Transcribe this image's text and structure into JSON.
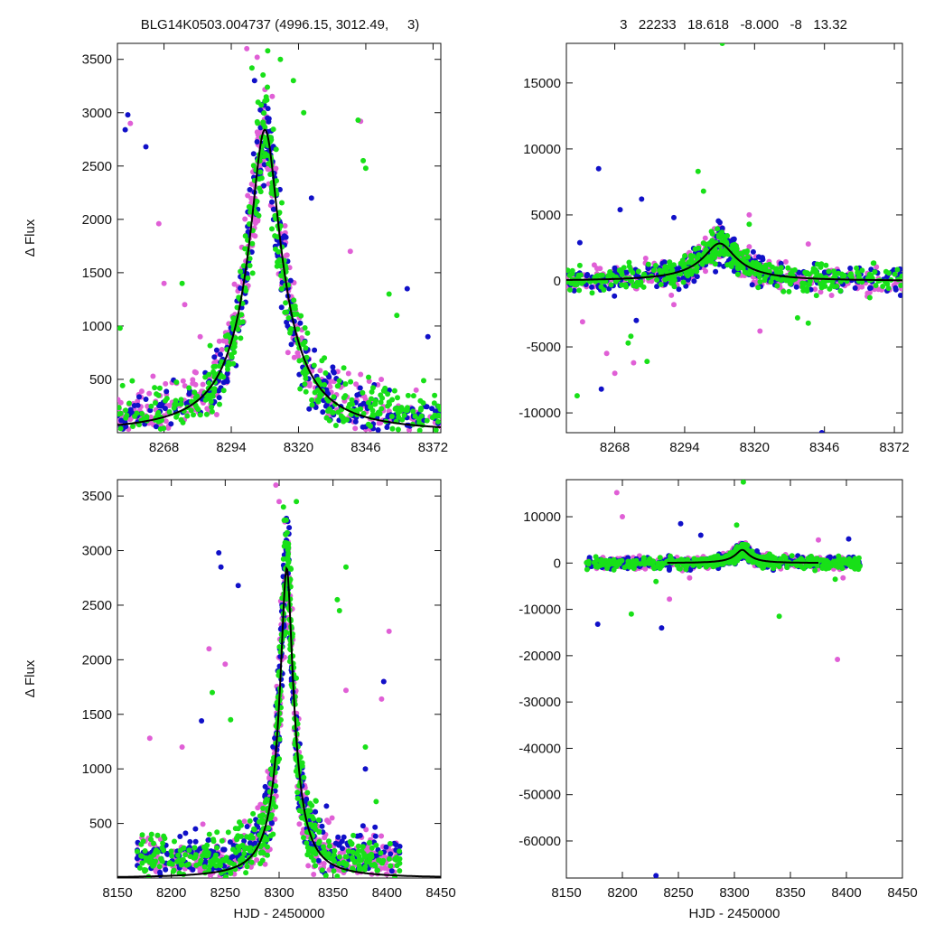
{
  "header": {
    "left": "BLG14K0503.004737 (4996.15, 3012.49,     3)",
    "right": "3   22233   18.618   -8.000   -8   13.32"
  },
  "colors": {
    "s1": "#e05fd6",
    "s2": "#1010c8",
    "s3": "#18e018",
    "model": "#000000"
  },
  "chart_data": [
    {
      "type": "scatter",
      "panel": "top-left",
      "ylabel": "Δ Flux",
      "xlabel": "",
      "xlim": [
        8250,
        8375
      ],
      "ylim": [
        0,
        3650
      ],
      "xticks": [
        8268,
        8294,
        8320,
        8346,
        8372
      ],
      "yticks": [
        500,
        1000,
        1500,
        2000,
        2500,
        3000,
        3500
      ],
      "series": [
        {
          "color": "#e05fd6",
          "values": [
            [
              8255,
              2900
            ],
            [
              8266,
              1960
            ],
            [
              8268,
              1400
            ],
            [
              8276,
              1200
            ],
            [
              8282,
              900
            ],
            [
              8300,
              3600
            ],
            [
              8304,
              3520
            ],
            [
              8340,
              1700
            ],
            [
              8344,
              2920
            ],
            [
              8352,
              500
            ]
          ]
        },
        {
          "color": "#1010c8",
          "values": [
            [
              8254,
              2980
            ],
            [
              8253,
              2840
            ],
            [
              8261,
              2680
            ],
            [
              8303,
              3300
            ],
            [
              8308,
              2950
            ],
            [
              8325,
              2200
            ],
            [
              8362,
              1350
            ],
            [
              8370,
              900
            ]
          ]
        },
        {
          "color": "#18e018",
          "values": [
            [
              8251,
              980
            ],
            [
              8275,
              1400
            ],
            [
              8302,
              3420
            ],
            [
              8313,
              3500
            ],
            [
              8318,
              3300
            ],
            [
              8322,
              3000
            ],
            [
              8343,
              2930
            ],
            [
              8345,
              2550
            ],
            [
              8346,
              2480
            ],
            [
              8355,
              1300
            ],
            [
              8358,
              1100
            ],
            [
              8330,
              700
            ]
          ]
        }
      ],
      "model": {
        "peak_x": 8307,
        "peak_y": 2840,
        "width": 11,
        "baseline": 0
      }
    },
    {
      "type": "scatter",
      "panel": "top-right",
      "ylabel": "",
      "xlabel": "",
      "xlim": [
        8250,
        8375
      ],
      "ylim": [
        -11500,
        18000
      ],
      "xticks": [
        8268,
        8294,
        8320,
        8346,
        8372
      ],
      "yticks": [
        -10000,
        -5000,
        0,
        5000,
        10000,
        15000
      ],
      "series": [
        {
          "color": "#e05fd6",
          "values": [
            [
              8256,
              -3100
            ],
            [
              8265,
              -5500
            ],
            [
              8268,
              -7000
            ],
            [
              8275,
              -6200
            ],
            [
              8318,
              5000
            ],
            [
              8322,
              -3800
            ],
            [
              8340,
              2800
            ],
            [
              8290,
              -1800
            ]
          ]
        },
        {
          "color": "#1010c8",
          "values": [
            [
              8255,
              2900
            ],
            [
              8263,
              -8200
            ],
            [
              8270,
              5400
            ],
            [
              8278,
              6200
            ],
            [
              8290,
              4800
            ],
            [
              8262,
              8500
            ],
            [
              8345,
              -11500
            ],
            [
              8276,
              -3000
            ]
          ]
        },
        {
          "color": "#18e018",
          "values": [
            [
              8254,
              -8700
            ],
            [
              8273,
              -4700
            ],
            [
              8274,
              -4200
            ],
            [
              8280,
              -6100
            ],
            [
              8299,
              8300
            ],
            [
              8301,
              6800
            ],
            [
              8308,
              18000
            ],
            [
              8318,
              4300
            ],
            [
              8336,
              -2800
            ],
            [
              8340,
              -3200
            ],
            [
              8343,
              -1100
            ]
          ]
        }
      ],
      "model": {
        "peak_x": 8307,
        "peak_y": 2840,
        "width": 11,
        "baseline": 0
      }
    },
    {
      "type": "scatter",
      "panel": "bottom-left",
      "ylabel": "Δ Flux",
      "xlabel": "HJD - 2450000",
      "xlim": [
        8150,
        8450
      ],
      "ylim": [
        0,
        3650
      ],
      "xticks": [
        8150,
        8200,
        8250,
        8300,
        8350,
        8400,
        8450
      ],
      "yticks": [
        500,
        1000,
        1500,
        2000,
        2500,
        3000,
        3500
      ],
      "series": [
        {
          "color": "#e05fd6",
          "values": [
            [
              8180,
              1280
            ],
            [
              8235,
              2100
            ],
            [
              8250,
              1960
            ],
            [
              8297,
              3600
            ],
            [
              8300,
              3450
            ],
            [
              8362,
              1720
            ],
            [
              8395,
              1640
            ],
            [
              8402,
              2260
            ],
            [
              8397,
              1800
            ],
            [
              8210,
              1200
            ]
          ]
        },
        {
          "color": "#1010c8",
          "values": [
            [
              8244,
              2980
            ],
            [
              8246,
              2850
            ],
            [
              8262,
              2680
            ],
            [
              8228,
              1440
            ],
            [
              8397,
              1800
            ],
            [
              8380,
              1000
            ]
          ]
        },
        {
          "color": "#18e018",
          "values": [
            [
              8238,
              1700
            ],
            [
              8255,
              1450
            ],
            [
              8304,
              3400
            ],
            [
              8316,
              3450
            ],
            [
              8354,
              2550
            ],
            [
              8356,
              2450
            ],
            [
              8362,
              2850
            ],
            [
              8380,
              1200
            ],
            [
              8390,
              700
            ]
          ]
        }
      ],
      "model": {
        "peak_x": 8307,
        "peak_y": 2840,
        "width": 11,
        "baseline": 0
      }
    },
    {
      "type": "scatter",
      "panel": "bottom-right",
      "ylabel": "",
      "xlabel": "HJD - 2450000",
      "xlim": [
        8150,
        8450
      ],
      "ylim": [
        -68000,
        18000
      ],
      "xticks": [
        8150,
        8200,
        8250,
        8300,
        8350,
        8400,
        8450
      ],
      "yticks": [
        -60000,
        -50000,
        -40000,
        -30000,
        -20000,
        -10000,
        0,
        10000
      ],
      "series": [
        {
          "color": "#e05fd6",
          "values": [
            [
              8195,
              15200
            ],
            [
              8200,
              10000
            ],
            [
              8242,
              -7800
            ],
            [
              8260,
              -3200
            ],
            [
              8375,
              5000
            ],
            [
              8392,
              -20800
            ],
            [
              8397,
              -3200
            ]
          ]
        },
        {
          "color": "#1010c8",
          "values": [
            [
              8178,
              -13200
            ],
            [
              8230,
              -67500
            ],
            [
              8235,
              -14000
            ],
            [
              8252,
              8500
            ],
            [
              8270,
              6000
            ],
            [
              8402,
              5200
            ]
          ]
        },
        {
          "color": "#18e018",
          "values": [
            [
              8208,
              -11000
            ],
            [
              8230,
              -4000
            ],
            [
              8308,
              17500
            ],
            [
              8302,
              8200
            ],
            [
              8340,
              -11500
            ],
            [
              8390,
              -3500
            ]
          ]
        }
      ],
      "model": {
        "peak_x": 8307,
        "peak_y": 2840,
        "width": 11,
        "baseline": 0,
        "xrange": [
          8240,
          8375
        ]
      }
    }
  ]
}
